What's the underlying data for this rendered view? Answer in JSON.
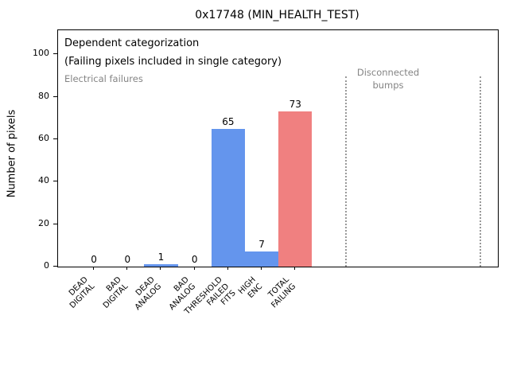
{
  "chart_data": {
    "type": "bar",
    "title": "0x17748 (MIN_HEALTH_TEST)",
    "ylabel": "Number of pixels",
    "xlabel": "",
    "categories": [
      "DEAD\nDIGITAL",
      "BAD\nDIGITAL",
      "DEAD\nANALOG",
      "BAD\nANALOG",
      "THRESHOLD\nFAILED\nFITS",
      "HIGH\nENC",
      "TOTAL\nFAILING"
    ],
    "values": [
      0,
      0,
      1,
      0,
      65,
      7,
      73
    ],
    "bar_colors": [
      "#6495ed",
      "#6495ed",
      "#6495ed",
      "#6495ed",
      "#6495ed",
      "#6495ed",
      "#f08080"
    ],
    "yticks": [
      0,
      20,
      40,
      60,
      80,
      100
    ],
    "ylim": [
      0,
      111.3
    ],
    "xlim": [
      -1.07,
      12.04
    ],
    "grid": false,
    "legend": "none",
    "separators_x_data": [
      7.5,
      11.5
    ],
    "annotations": {
      "dependent": "Dependent categorization",
      "failing": "(Failing pixels included in single category)",
      "electrical": "Electrical failures",
      "disconnected": "Disconnected\nbumps"
    },
    "colors": {
      "bar_default": "#6495ed",
      "bar_total": "#f08080",
      "gray_text": "#848484",
      "separator_line": "#999999",
      "axis": "#000000",
      "background": "#ffffff"
    }
  }
}
